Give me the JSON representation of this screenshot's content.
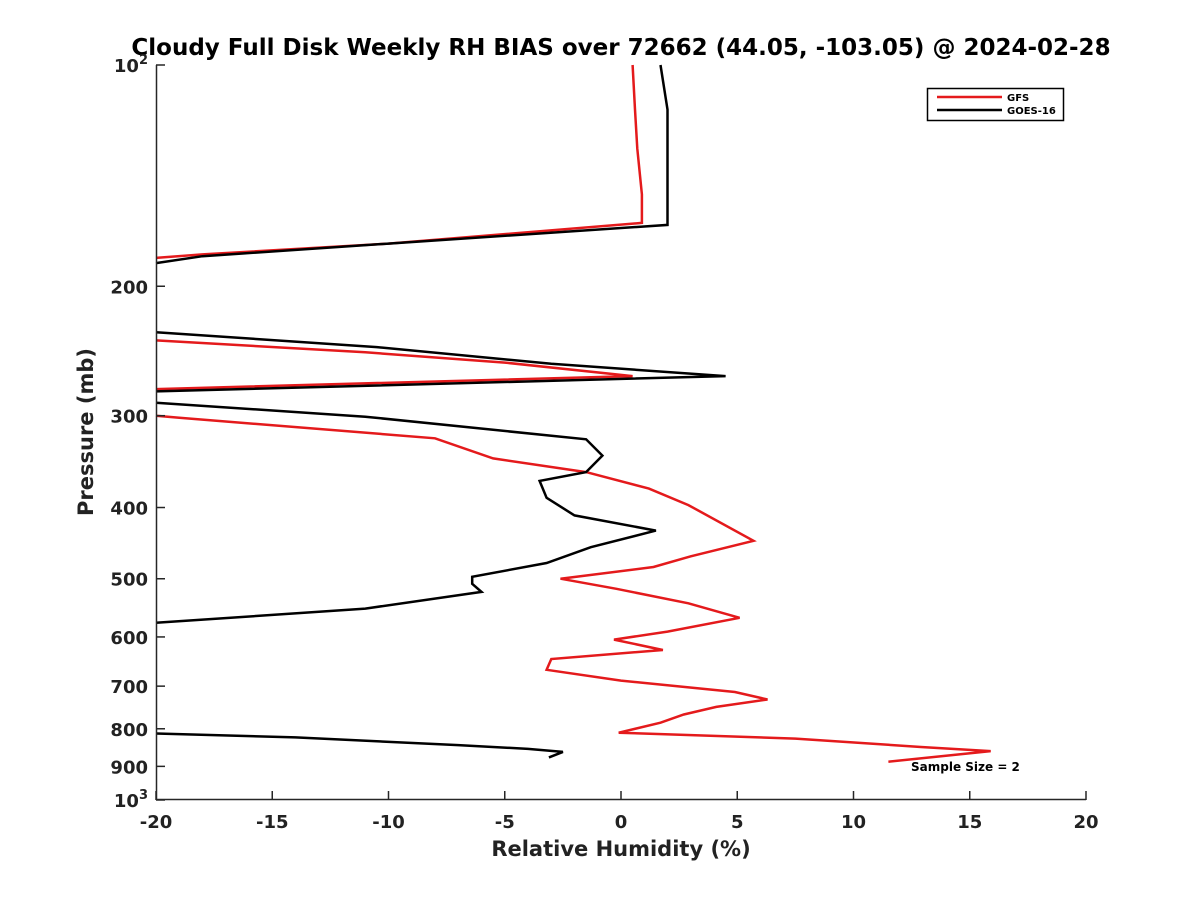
{
  "chart_data": {
    "type": "line",
    "title": "Cloudy Full Disk Weekly RH BIAS over 72662 (44.05, -103.05) @ 2024-02-28",
    "xlabel": "Relative Humidity (%)",
    "ylabel": "Pressure (mb)",
    "xlim": [
      -20,
      20
    ],
    "ylim": [
      100,
      1000
    ],
    "y_scale": "log",
    "y_reversed": true,
    "x_ticks": [
      -20,
      -15,
      -10,
      -5,
      0,
      5,
      10,
      15,
      20
    ],
    "x_tick_labels": [
      "-20",
      "-15",
      "-10",
      "-5",
      "0",
      "5",
      "10",
      "15",
      "20"
    ],
    "y_ticks": [
      {
        "value": 100,
        "base": "10",
        "exp": "2"
      },
      {
        "value": 200,
        "label": "200"
      },
      {
        "value": 300,
        "label": "300"
      },
      {
        "value": 400,
        "label": "400"
      },
      {
        "value": 500,
        "label": "500"
      },
      {
        "value": 600,
        "label": "600"
      },
      {
        "value": 700,
        "label": "700"
      },
      {
        "value": 800,
        "label": "800"
      },
      {
        "value": 900,
        "label": "900"
      },
      {
        "value": 1000,
        "base": "10",
        "exp": "3"
      }
    ],
    "grid": false,
    "legend_position": "top-right",
    "annotation": "Sample Size = 2",
    "series": [
      {
        "name": "GFS",
        "color": "#e41a1c",
        "segments": [
          [
            [
              0.5,
              100
            ],
            [
              0.6,
              115
            ],
            [
              0.7,
              130
            ],
            [
              0.9,
              150
            ],
            [
              0.9,
              164
            ],
            [
              -10,
              175
            ],
            [
              -18,
              181
            ],
            [
              -20,
              183
            ]
          ],
          [
            [
              -20,
              237
            ],
            [
              -11,
              246
            ],
            [
              -5,
              254
            ],
            [
              0.5,
              265
            ],
            [
              -20,
              276
            ]
          ],
          [
            [
              -20,
              300
            ],
            [
              -19,
              302
            ],
            [
              -8,
              322
            ],
            [
              -5.5,
              343
            ],
            [
              -1.5,
              358
            ],
            [
              1.2,
              377
            ],
            [
              2.9,
              397
            ],
            [
              5.7,
              444
            ],
            [
              3,
              466
            ],
            [
              1.4,
              482
            ],
            [
              -2.6,
              500
            ],
            [
              -0.2,
              516
            ],
            [
              2.9,
              540
            ],
            [
              5.1,
              565
            ],
            [
              2,
              590
            ],
            [
              -0.3,
              605
            ],
            [
              1.8,
              625
            ],
            [
              -3,
              643
            ],
            [
              -3.2,
              665
            ],
            [
              0,
              688
            ],
            [
              4.9,
              713
            ],
            [
              6.3,
              730
            ],
            [
              4.1,
              747
            ],
            [
              2.7,
              765
            ],
            [
              1.7,
              785
            ],
            [
              -0.1,
              810
            ],
            [
              7.5,
              825
            ],
            [
              12.9,
              847
            ],
            [
              15.9,
              858
            ],
            [
              11.5,
              887
            ]
          ]
        ]
      },
      {
        "name": "GOES-16",
        "color": "#000000",
        "segments": [
          [
            [
              1.7,
              100
            ],
            [
              2,
              115
            ],
            [
              2,
              135
            ],
            [
              2,
              165
            ],
            [
              -10,
              175
            ],
            [
              -18,
              182
            ],
            [
              -20,
              186
            ]
          ],
          [
            [
              -20,
              231
            ],
            [
              -10.5,
              242
            ],
            [
              -3,
              255
            ],
            [
              4.5,
              265
            ],
            [
              -20,
              278
            ]
          ],
          [
            [
              -20,
              288
            ],
            [
              -11,
              301
            ],
            [
              -1.5,
              323
            ],
            [
              -0.8,
              340
            ],
            [
              -1.5,
              358
            ],
            [
              -3.5,
              368
            ],
            [
              -3.2,
              388
            ],
            [
              -2,
              410
            ],
            [
              1.5,
              430
            ],
            [
              -1.3,
              453
            ],
            [
              -3.2,
              476
            ],
            [
              -6.4,
              497
            ],
            [
              -6.4,
              508
            ],
            [
              -6,
              521
            ],
            [
              -11,
              549
            ],
            [
              -20,
              574
            ]
          ],
          [
            [
              -20,
              812
            ],
            [
              -14,
              822
            ],
            [
              -7,
              842
            ],
            [
              -4,
              852
            ],
            [
              -2.5,
              860
            ],
            [
              -3.1,
              875
            ]
          ]
        ]
      }
    ]
  }
}
